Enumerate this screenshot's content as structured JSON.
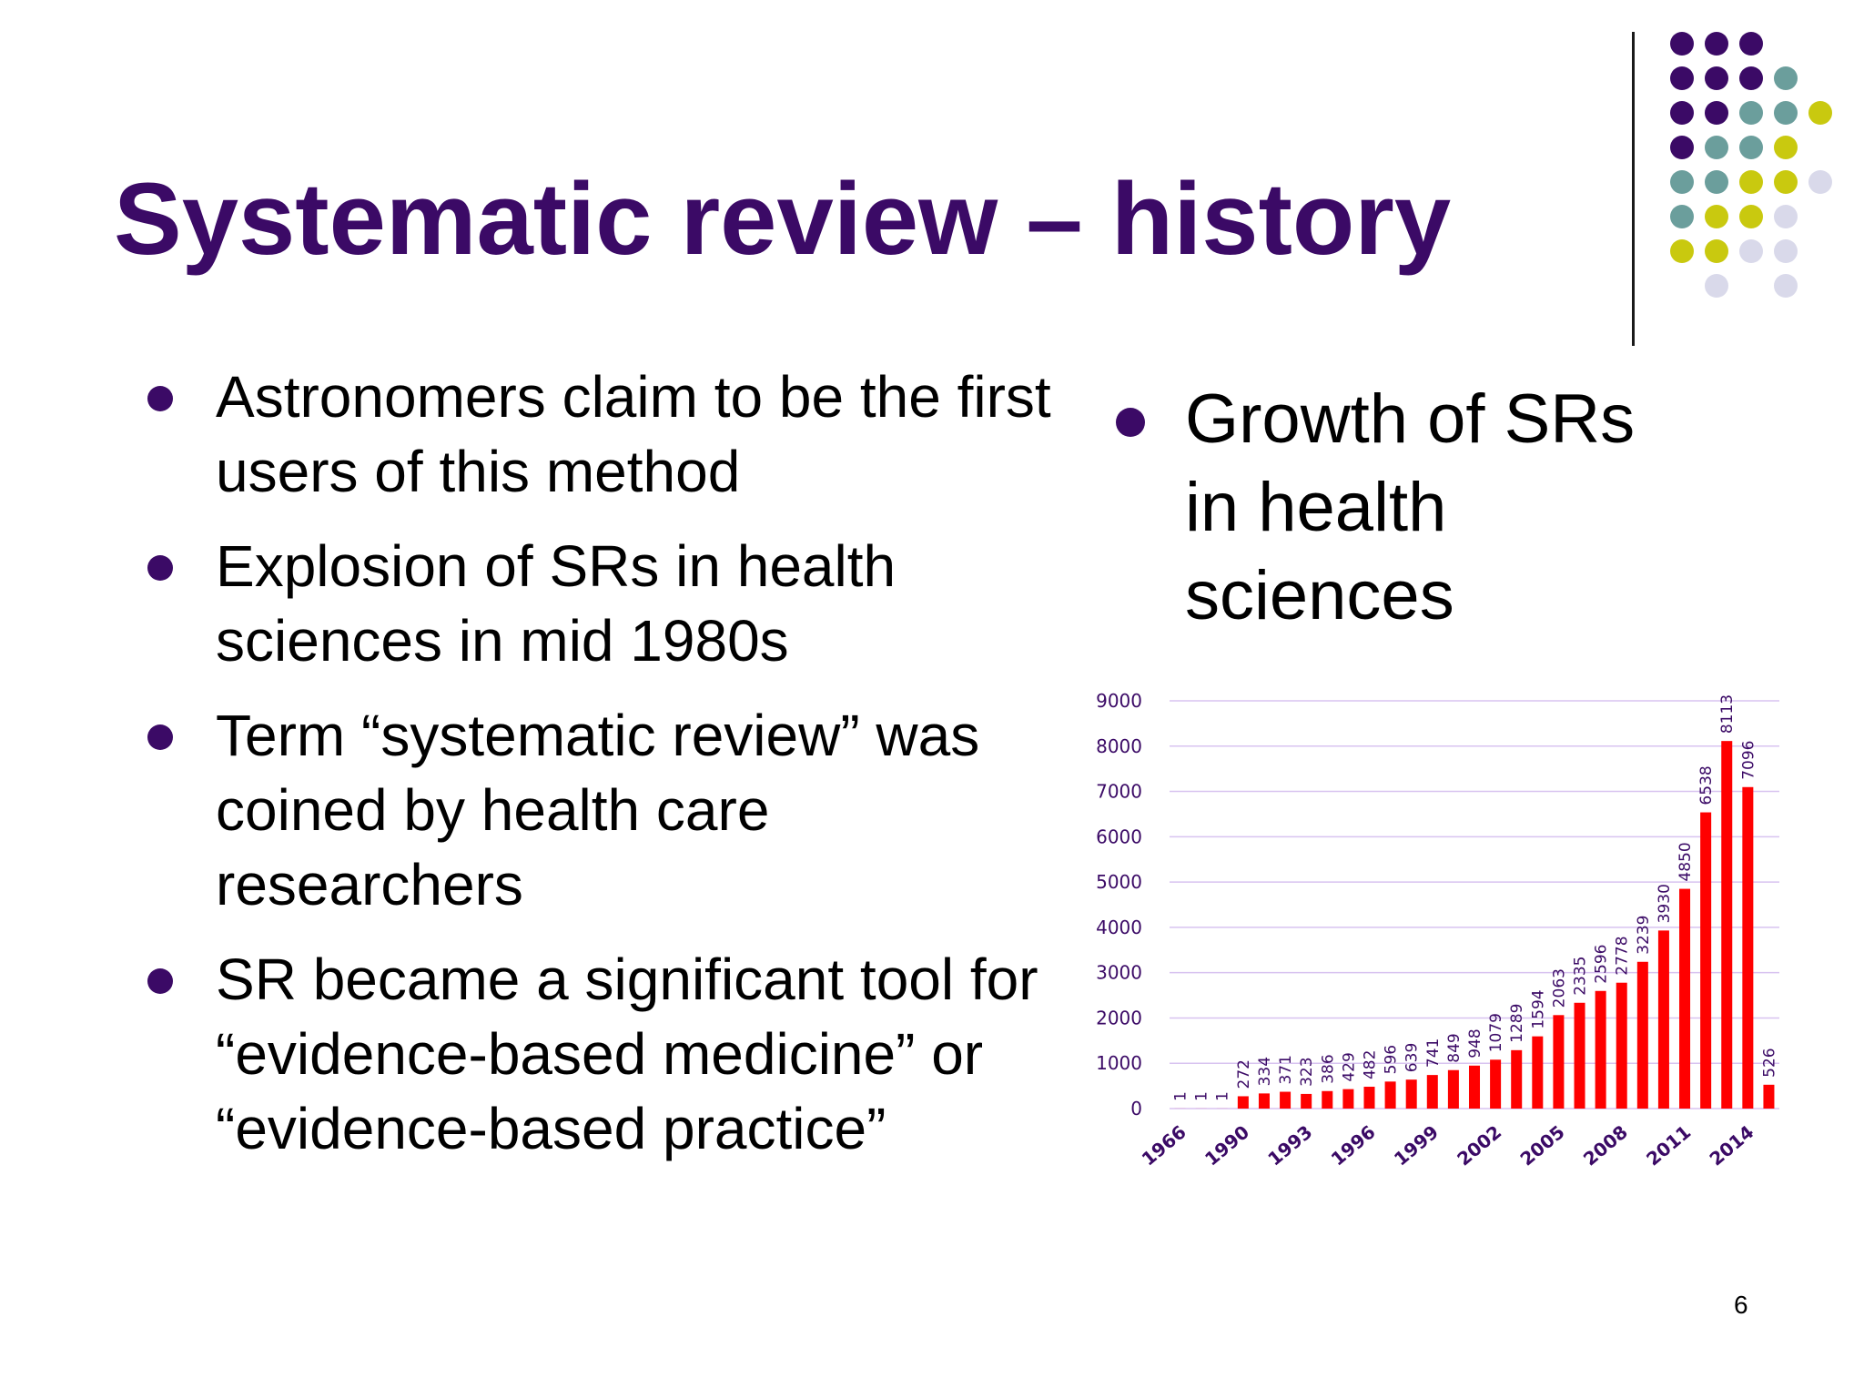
{
  "slide": {
    "title": "Systematic review – history",
    "page_number": "6"
  },
  "bullets": [
    "Astronomers claim to be the first users of this method",
    "Explosion of SRs in health sciences in mid 1980s",
    "Term “systematic review” was coined by health care researchers",
    "SR became a significant tool for “evidence-based medicine” or “evidence-based practice”"
  ],
  "side_bullet": "Growth of SRs in health sciences",
  "colors": {
    "title": "#3b0a66",
    "bullet_dot": "#3b0a66",
    "bar": "#ff0000",
    "gridline": "#d8c3f0",
    "tick_label": "#3b0a66",
    "data_label": "#3b0a66",
    "dot_purple": "#3b0a66",
    "dot_teal": "#6b9e9c",
    "dot_olive": "#c9c90f",
    "dot_lavender": "#d9d9ea"
  },
  "decor_dots_rows": [
    [
      "purple",
      "purple",
      "purple"
    ],
    [
      "purple",
      "purple",
      "purple",
      "teal"
    ],
    [
      "purple",
      "purple",
      "teal",
      "teal",
      "olive"
    ],
    [
      "purple",
      "teal",
      "teal",
      "olive"
    ],
    [
      "teal",
      "teal",
      "olive",
      "olive",
      "lavender"
    ],
    [
      "teal",
      "olive",
      "olive",
      "lavender"
    ],
    [
      "olive",
      "olive",
      "lavender",
      "lavender"
    ],
    [
      "",
      "lavender",
      "",
      "lavender"
    ]
  ],
  "chart_data": {
    "type": "bar",
    "categories": [
      "1966",
      "1967",
      "1968",
      "1990",
      "1991",
      "1992",
      "1993",
      "1994",
      "1995",
      "1996",
      "1997",
      "1998",
      "1999",
      "2000",
      "2001",
      "2002",
      "2003",
      "2004",
      "2005",
      "2006",
      "2007",
      "2008",
      "2009",
      "2010",
      "2011",
      "2012",
      "2013",
      "2014",
      "2015"
    ],
    "values": [
      1,
      1,
      1,
      272,
      334,
      371,
      323,
      386,
      429,
      482,
      596,
      639,
      741,
      849,
      948,
      1079,
      1289,
      1594,
      2063,
      2335,
      2596,
      2778,
      3239,
      3930,
      4850,
      6538,
      8113,
      7096,
      526
    ],
    "x_tick_labels": [
      "1966",
      "1990",
      "1993",
      "1996",
      "1999",
      "2002",
      "2005",
      "2008",
      "2011",
      "2014"
    ],
    "x_tick_label_index": [
      0,
      3,
      6,
      9,
      12,
      15,
      18,
      21,
      24,
      27
    ],
    "y_ticks": [
      0,
      1000,
      2000,
      3000,
      4000,
      5000,
      6000,
      7000,
      8000,
      9000
    ],
    "ylim": [
      0,
      9000
    ],
    "title": "",
    "xlabel": "",
    "ylabel": "",
    "grid": true,
    "data_labels": true,
    "legend": "none"
  }
}
